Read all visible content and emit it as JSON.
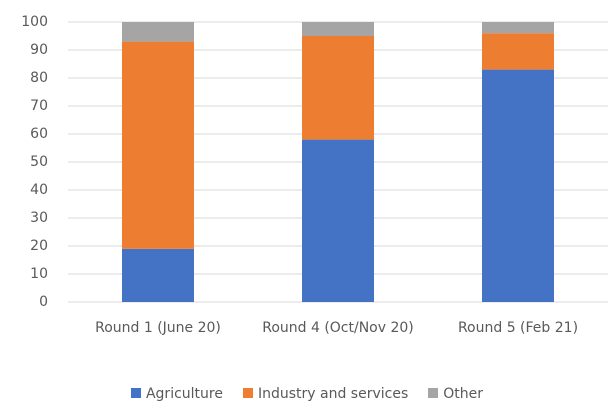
{
  "chart_data": {
    "type": "stacked_bar",
    "categories": [
      "Round 1 (June 20)",
      "Round 4 (Oct/Nov 20)",
      "Round 5 (Feb 21)"
    ],
    "series": [
      {
        "name": "Agriculture",
        "color": "#4472c4",
        "values": [
          19,
          58,
          83
        ]
      },
      {
        "name": "Industry and services",
        "color": "#ed7d31",
        "values": [
          74,
          37,
          13
        ]
      },
      {
        "name": "Other",
        "color": "#a5a5a5",
        "values": [
          7,
          5,
          4
        ]
      }
    ],
    "ylim": [
      0,
      100
    ],
    "yticks": [
      0,
      10,
      20,
      30,
      40,
      50,
      60,
      70,
      80,
      90,
      100
    ],
    "grid": true
  }
}
